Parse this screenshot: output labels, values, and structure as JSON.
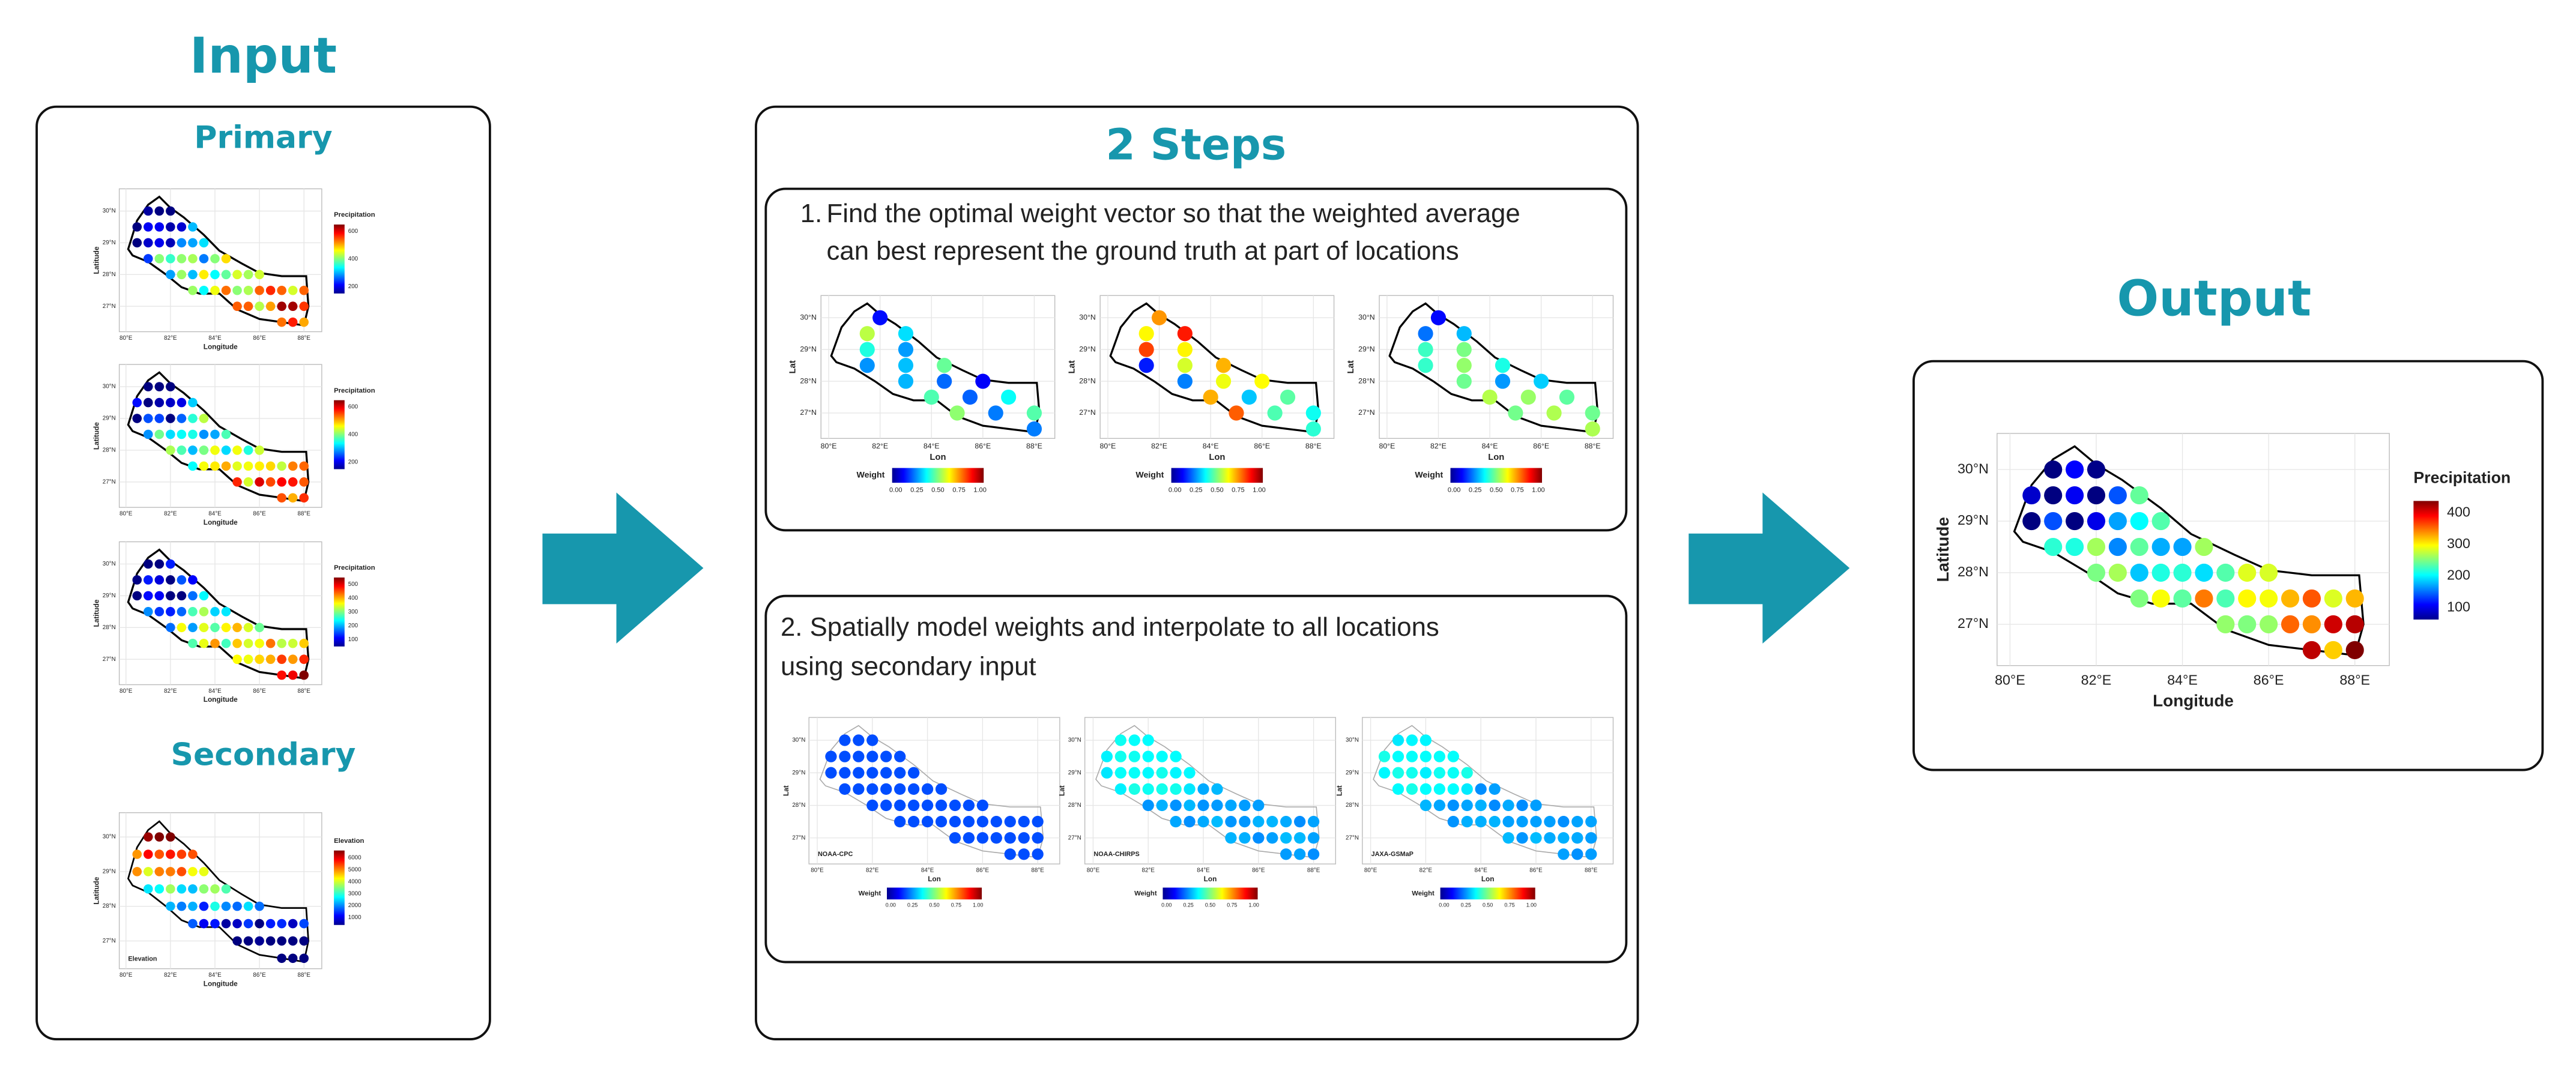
{
  "input": {
    "title": "Input",
    "primary_title": "Primary",
    "secondary_title": "Secondary",
    "primary_maps": [
      {
        "y_label": "Latitude",
        "x_label": "Longitude",
        "legend_title": "Precipitation",
        "y_ticks": [
          "30°N",
          "29°N",
          "28°N",
          "27°N"
        ],
        "x_ticks": [
          "80°E",
          "82°E",
          "84°E",
          "86°E",
          "88°E"
        ],
        "legend_ticks": [
          "600",
          "400",
          "200"
        ]
      },
      {
        "y_label": "Latitude",
        "x_label": "Longitude",
        "legend_title": "Precipitation",
        "y_ticks": [
          "30°N",
          "29°N",
          "28°N",
          "27°N"
        ],
        "x_ticks": [
          "80°E",
          "82°E",
          "84°E",
          "86°E",
          "88°E"
        ],
        "legend_ticks": [
          "600",
          "400",
          "200"
        ]
      },
      {
        "y_label": "Latitude",
        "x_label": "Longitude",
        "legend_title": "Precipitation",
        "y_ticks": [
          "30°N",
          "29°N",
          "28°N",
          "27°N"
        ],
        "x_ticks": [
          "80°E",
          "82°E",
          "84°E",
          "86°E",
          "88°E"
        ],
        "legend_ticks": [
          "500",
          "400",
          "300",
          "200",
          "100"
        ]
      }
    ],
    "secondary_map": {
      "y_label": "Latitude",
      "x_label": "Longitude",
      "legend_title": "Elevation",
      "panel_label": "Elevation",
      "y_ticks": [
        "30°N",
        "29°N",
        "28°N",
        "27°N"
      ],
      "x_ticks": [
        "80°E",
        "82°E",
        "84°E",
        "86°E",
        "88°E"
      ],
      "legend_ticks": [
        "6000",
        "5000",
        "4000",
        "3000",
        "2000",
        "1000"
      ]
    }
  },
  "steps": {
    "title": "2 Steps",
    "step1": {
      "number": "1.",
      "lines": [
        "Find the optimal weight vector so that the weighted average",
        "can best represent the ground truth at part of locations"
      ],
      "maps": [
        {
          "y_label": "Lat",
          "x_label": "Lon",
          "legend_title": "Weight",
          "y_ticks": [
            "30°N",
            "29°N",
            "28°N",
            "27°N"
          ],
          "x_ticks": [
            "80°E",
            "82°E",
            "84°E",
            "86°E",
            "88°E"
          ],
          "legend_ticks": [
            "0.00",
            "0.25",
            "0.50",
            "0.75",
            "1.00"
          ]
        },
        {
          "y_label": "Lat",
          "x_label": "Lon",
          "legend_title": "Weight",
          "y_ticks": [
            "30°N",
            "29°N",
            "28°N",
            "27°N"
          ],
          "x_ticks": [
            "80°E",
            "82°E",
            "84°E",
            "86°E",
            "88°E"
          ],
          "legend_ticks": [
            "0.00",
            "0.25",
            "0.50",
            "0.75",
            "1.00"
          ]
        },
        {
          "y_label": "Lat",
          "x_label": "Lon",
          "legend_title": "Weight",
          "y_ticks": [
            "30°N",
            "29°N",
            "28°N",
            "27°N"
          ],
          "x_ticks": [
            "80°E",
            "82°E",
            "84°E",
            "86°E",
            "88°E"
          ],
          "legend_ticks": [
            "0.00",
            "0.25",
            "0.50",
            "0.75",
            "1.00"
          ]
        }
      ]
    },
    "step2": {
      "lines": [
        "2. Spatially model weights and interpolate to all locations",
        "using secondary input"
      ],
      "maps": [
        {
          "y_label": "Lat",
          "x_label": "Lon",
          "legend_title": "Weight",
          "panel_label": "NOAA-CPC",
          "y_ticks": [
            "30°N",
            "29°N",
            "28°N",
            "27°N"
          ],
          "x_ticks": [
            "80°E",
            "82°E",
            "84°E",
            "86°E",
            "88°E"
          ],
          "legend_ticks": [
            "0.00",
            "0.25",
            "0.50",
            "0.75",
            "1.00"
          ]
        },
        {
          "y_label": "Lat",
          "x_label": "Lon",
          "legend_title": "Weight",
          "panel_label": "NOAA-CHIRPS",
          "y_ticks": [
            "30°N",
            "29°N",
            "28°N",
            "27°N"
          ],
          "x_ticks": [
            "80°E",
            "82°E",
            "84°E",
            "86°E",
            "88°E"
          ],
          "legend_ticks": [
            "0.00",
            "0.25",
            "0.50",
            "0.75",
            "1.00"
          ]
        },
        {
          "y_label": "Lat",
          "x_label": "Lon",
          "legend_title": "Weight",
          "panel_label": "JAXA-GSMaP",
          "y_ticks": [
            "30°N",
            "29°N",
            "28°N",
            "27°N"
          ],
          "x_ticks": [
            "80°E",
            "82°E",
            "84°E",
            "86°E",
            "88°E"
          ],
          "legend_ticks": [
            "0.00",
            "0.25",
            "0.50",
            "0.75",
            "1.00"
          ]
        }
      ]
    }
  },
  "output": {
    "title": "Output",
    "map": {
      "y_label": "Latitude",
      "x_label": "Longitude",
      "legend_title": "Precipitation",
      "y_ticks": [
        "30°N",
        "29°N",
        "28°N",
        "27°N"
      ],
      "x_ticks": [
        "80°E",
        "82°E",
        "84°E",
        "86°E",
        "88°E"
      ],
      "legend_ticks": [
        "400",
        "300",
        "200",
        "100"
      ]
    }
  }
}
